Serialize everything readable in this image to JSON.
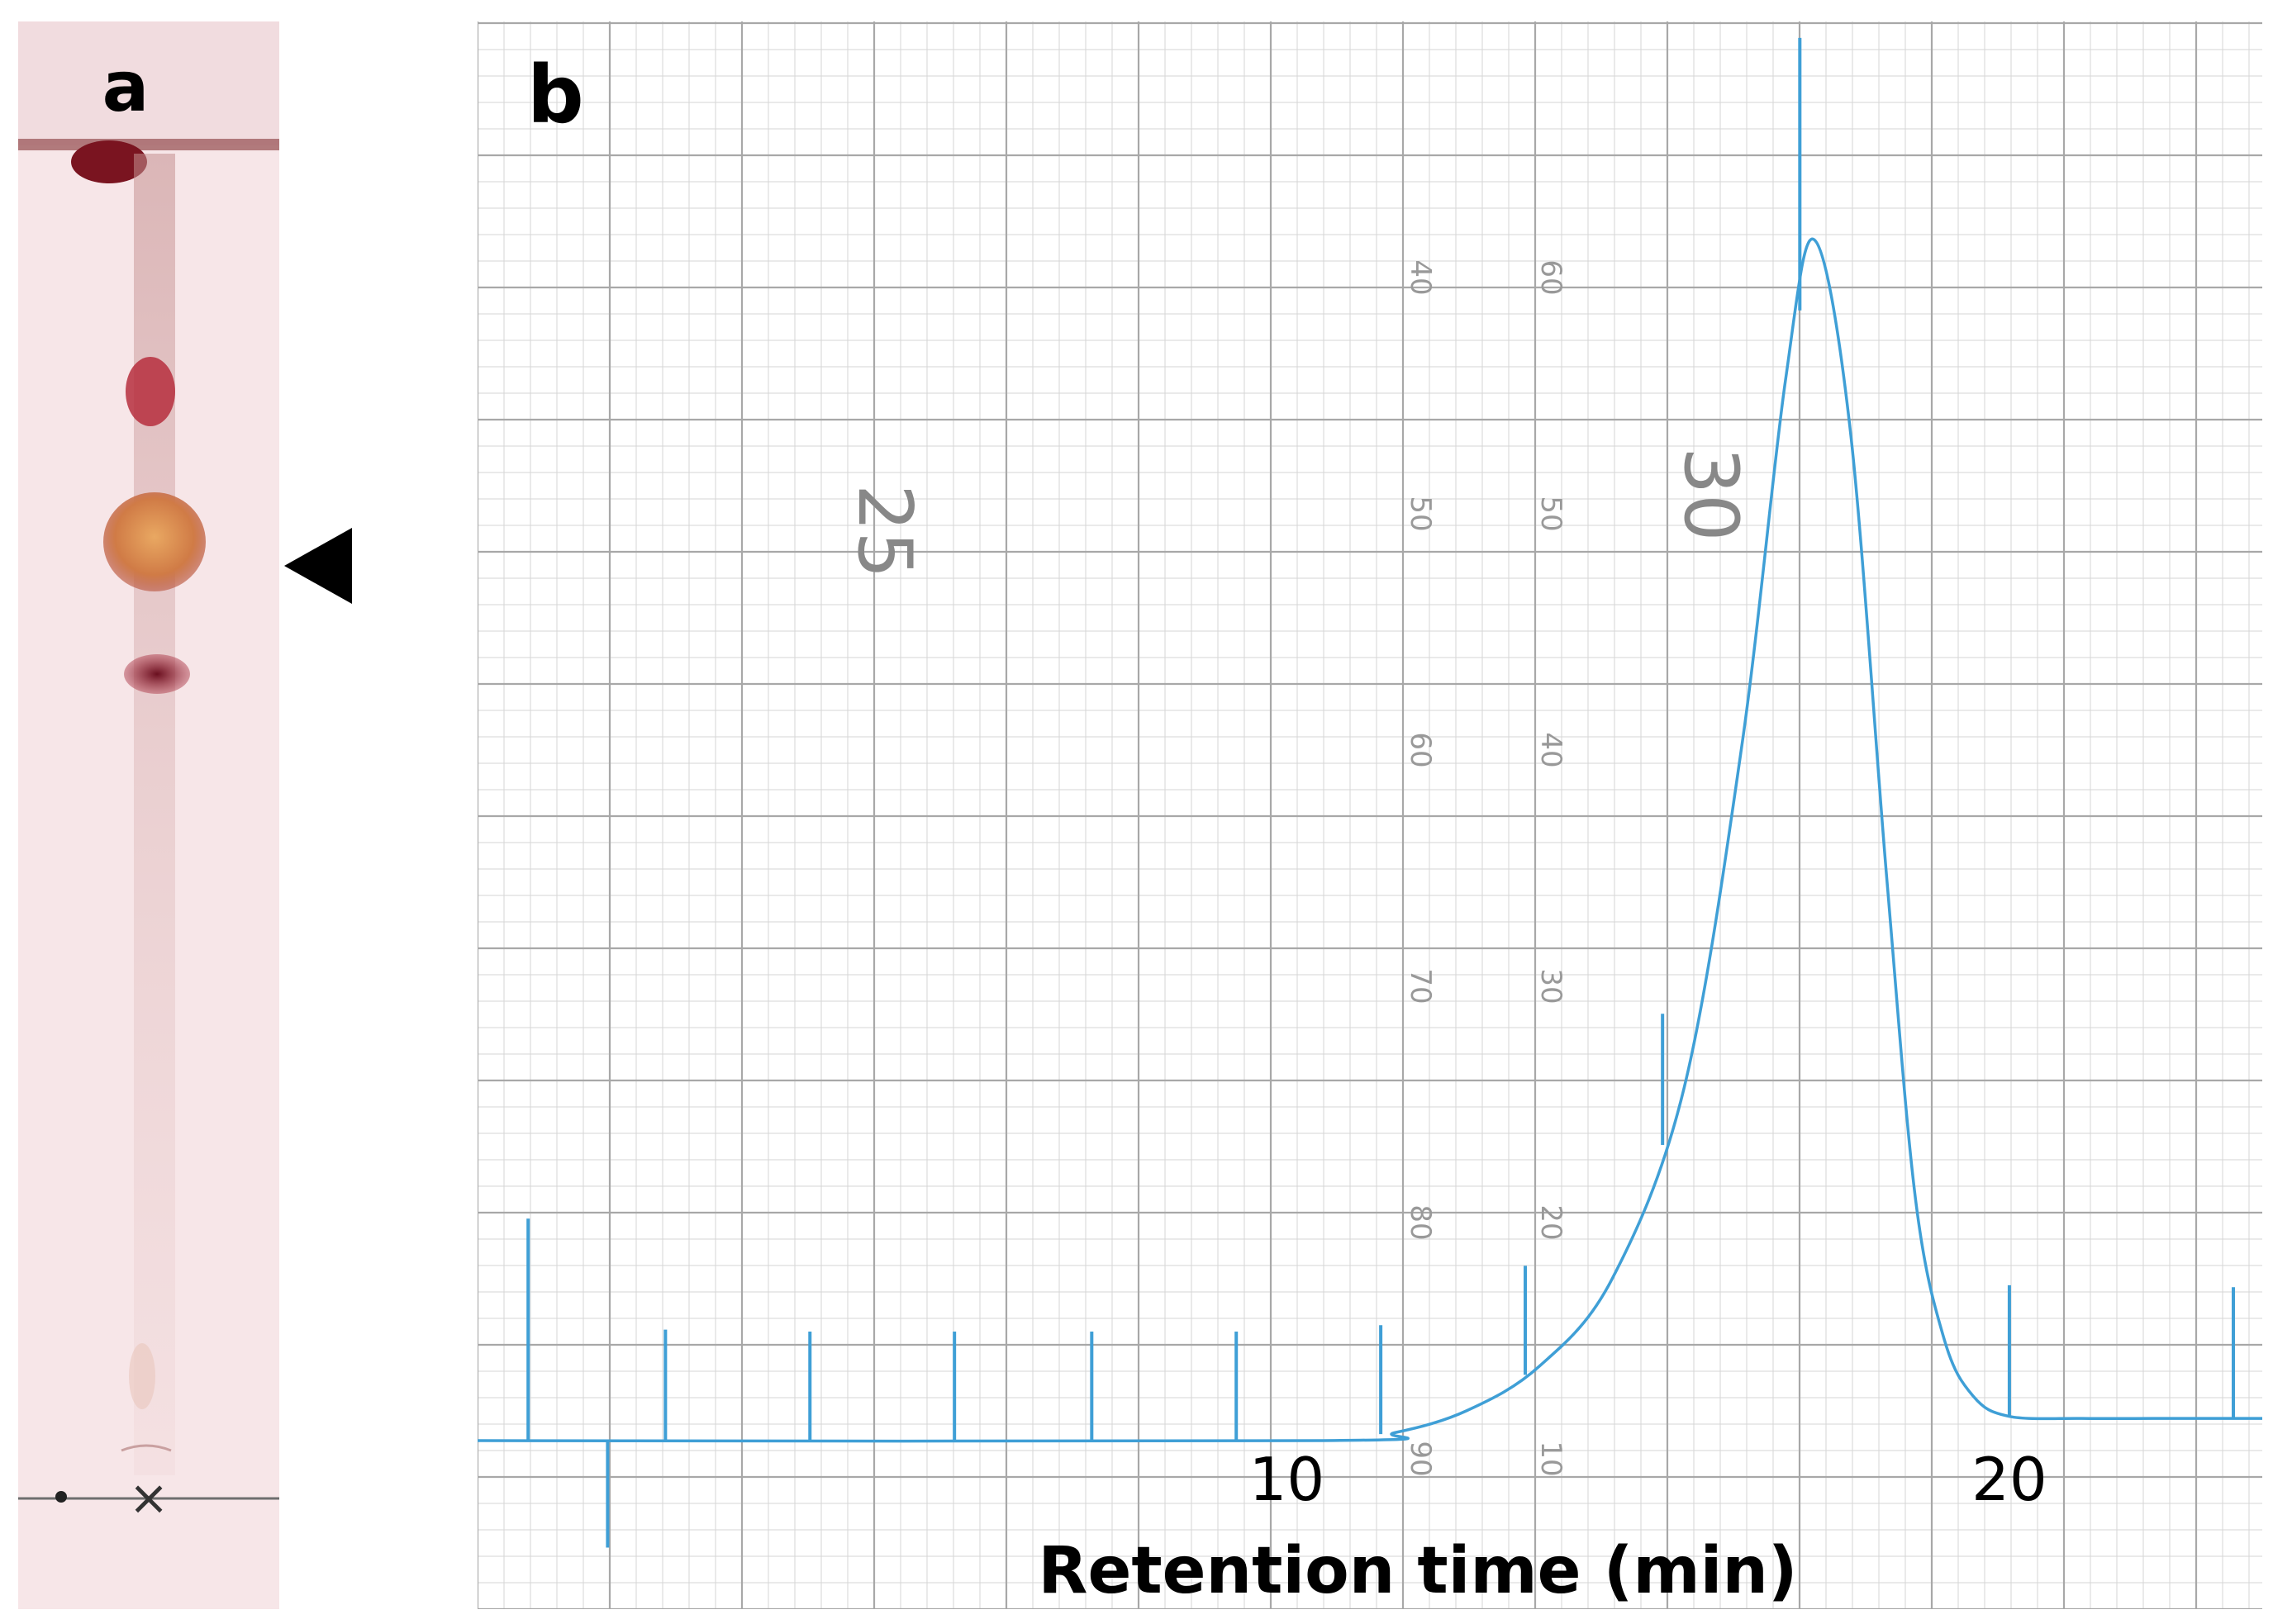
{
  "panels": {
    "a": {
      "letter": "a"
    },
    "b": {
      "letter": "b"
    }
  },
  "colors": {
    "trace": "#3f9fd6",
    "grid_minor": "#d6d6d6",
    "grid_major": "#a8a8a8",
    "plate_bg": "#f7e6e8",
    "solvent_front": "#9a5558",
    "spot_dark": "#8e1c2a",
    "spot_target": "#d9874a",
    "arrow": "#000000"
  },
  "tlc": {
    "marker_symbol": "×",
    "arrow_marks_spot": 3
  },
  "chart_data": {
    "type": "line",
    "xlabel": "Retention time (min)",
    "ylabel": "",
    "title": "",
    "x_ticks": [
      "10",
      "20"
    ],
    "x_tick_values": [
      10,
      20
    ],
    "xlim": [
      -1.2,
      23.5
    ],
    "ylim": [
      -5,
      100
    ],
    "grid": true,
    "paper_print": {
      "big_numbers": [
        "25",
        "30"
      ],
      "scale_left": [
        "40",
        "50",
        "60",
        "70",
        "80",
        "90"
      ],
      "scale_right": [
        "60",
        "50",
        "40",
        "30",
        "20",
        "10"
      ]
    },
    "series": [
      {
        "x": [
          -1.2,
          10.5,
          11.5,
          12.5,
          13.5,
          14.5,
          15.5,
          16.3,
          16.9,
          17.3,
          17.8,
          18.3,
          18.7,
          19.1,
          19.5,
          20.0,
          21.0,
          22.0,
          23.0,
          23.5
        ],
        "y": [
          0,
          0,
          0.4,
          1.5,
          3.7,
          8.0,
          17.5,
          34.5,
          52.5,
          59.5,
          50.0,
          28.0,
          12.0,
          5.0,
          2.2,
          1.2,
          1.1,
          1.1,
          1.1,
          1.1
        ]
      }
    ],
    "event_markers": {
      "x": [
        -0.5,
        1.4,
        3.4,
        5.4,
        7.3,
        9.3,
        11.3,
        13.3,
        15.2,
        17.1,
        20.0,
        23.1
      ],
      "height": [
        11,
        5.5,
        5.4,
        5.4,
        5.4,
        5.4,
        5.4,
        5.4,
        6.5,
        13.5,
        6.5,
        6.5
      ],
      "neg_marker": {
        "x": 0.6,
        "depth": -5.3
      }
    }
  }
}
